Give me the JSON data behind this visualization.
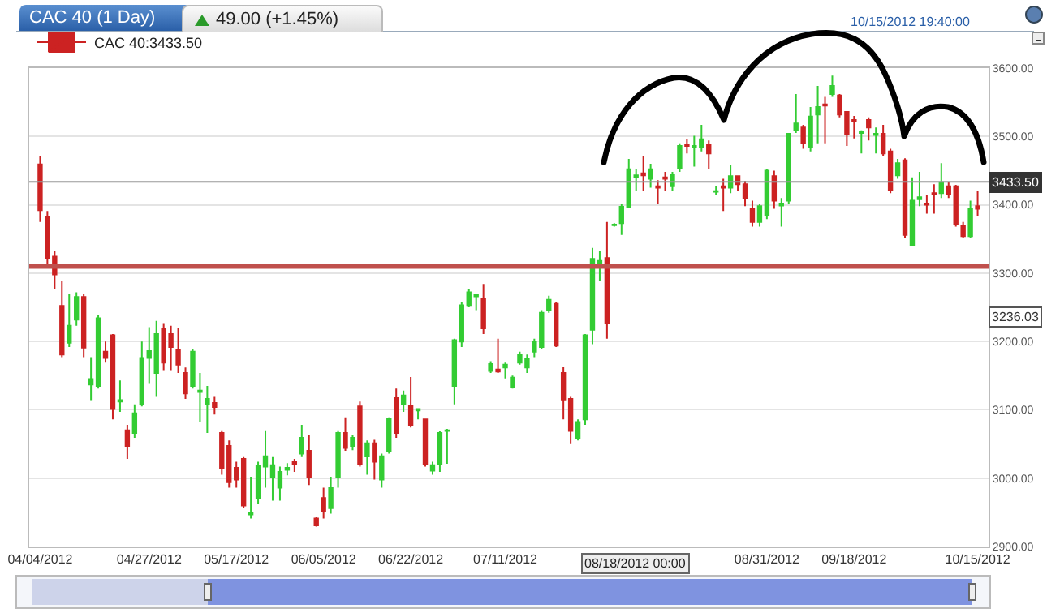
{
  "chart_data": {
    "type": "candlestick",
    "title": "CAC 40 (1 Day)",
    "subtitle": "49.00 (+1.45%)",
    "categories": [
      "04/04/2012",
      null,
      null,
      null,
      null,
      null,
      null,
      null,
      null,
      null,
      null,
      null,
      null,
      null,
      null,
      "04/27/2012",
      null,
      null,
      null,
      null,
      null,
      null,
      null,
      null,
      null,
      null,
      null,
      "05/17/2012",
      null,
      null,
      null,
      null,
      null,
      null,
      null,
      null,
      null,
      null,
      null,
      "06/05/2012",
      null,
      null,
      null,
      null,
      null,
      null,
      null,
      null,
      null,
      null,
      null,
      "06/22/2012",
      null,
      null,
      null,
      null,
      null,
      null,
      null,
      null,
      null,
      null,
      null,
      null,
      "07/11/2012",
      null,
      null,
      null,
      null,
      null,
      null,
      null,
      null,
      null,
      null,
      null,
      null,
      null,
      null,
      null,
      null,
      null,
      null,
      null,
      null,
      null,
      null,
      null,
      null,
      null,
      null,
      null,
      null,
      null,
      null,
      null,
      null,
      null,
      null,
      null,
      "08/31/2012",
      null,
      null,
      null,
      null,
      null,
      null,
      null,
      null,
      null,
      null,
      null,
      "09/18/2012",
      null,
      null,
      null,
      null,
      null,
      null,
      null,
      null,
      null,
      null,
      null,
      null,
      null,
      null,
      null,
      null,
      "10/15/2012"
    ],
    "series": [
      {
        "name": "CAC 40:3433.50",
        "colors": [
          "#cc2222",
          "#cc2222",
          "#cc2222",
          "#cc2222",
          "#33cc33",
          "#33cc33",
          "#cc2222",
          "#33cc33",
          "#33cc33",
          "#cc2222",
          "#cc2222",
          "#33cc33",
          "#cc2222",
          "#33cc33",
          "#33cc33",
          "#33cc33",
          "#33cc33",
          "#cc2222",
          "#cc2222",
          "#cc2222",
          "#cc2222",
          "#33cc33",
          "#33cc33",
          "#33cc33",
          "#cc2222",
          "#cc2222",
          "#cc2222",
          "#cc2222",
          "#cc2222",
          "#33cc33",
          "#33cc33",
          "#33cc33",
          "#33cc33",
          "#33cc33",
          "#33cc33",
          "#cc2222",
          "#33cc33",
          "#cc2222",
          "#cc2222",
          "#cc2222",
          "#33cc33",
          "#33cc33",
          "#cc2222",
          "#33cc33",
          "#cc2222",
          "#33cc33",
          "#cc2222",
          "#33cc33",
          "#33cc33",
          "#cc2222",
          "#33cc33",
          "#cc2222",
          "#33cc33",
          "#cc2222",
          "#33cc33",
          "#33cc33",
          "#33cc33",
          "#33cc33",
          "#33cc33",
          "#33cc33",
          "#33cc33",
          "#cc2222",
          "#33cc33",
          "#cc2222",
          "#33cc33",
          "#33cc33",
          "#33cc33",
          "#33cc33",
          "#33cc33",
          "#33cc33",
          "#33cc33",
          "#cc2222",
          "#cc2222",
          "#cc2222",
          "#33cc33",
          "#33cc33",
          "#33cc33",
          "#33cc33",
          "#cc2222",
          "#33cc33",
          "#33cc33",
          "#33cc33",
          "#33cc33",
          "#cc2222",
          "#33cc33",
          "#cc2222",
          "#cc2222",
          "#33cc33",
          "#33cc33",
          "#cc2222",
          "#33cc33",
          "#33cc33",
          "#cc2222",
          "#33cc33",
          "#cc2222",
          "#33cc33",
          "#cc2222",
          "#cc2222",
          "#cc2222",
          "#33cc33",
          "#33cc33",
          "#cc2222",
          "#33cc33",
          "#33cc33",
          "#33cc33",
          "#cc2222",
          "#33cc33",
          "#33cc33",
          "#cc2222",
          "#33cc33",
          "#cc2222",
          "#cc2222",
          "#cc2222",
          "#33cc33",
          "#cc2222",
          "#33cc33",
          "#cc2222",
          "#cc2222",
          "#33cc33",
          "#cc2222",
          "#33cc33",
          "#33cc33",
          "#cc2222",
          "#cc2222",
          "#33cc33",
          "#cc2222",
          "#cc2222",
          "#cc2222",
          "#33cc33",
          "#cc2222"
        ],
        "ohlc": [
          [
            3459,
            3471,
            3375,
            3392
          ],
          [
            3383,
            3391,
            3311,
            3322
          ],
          [
            3324,
            3333,
            3276,
            3298
          ],
          [
            3252,
            3288,
            3177,
            3181
          ],
          [
            3198,
            3269,
            3192,
            3223
          ],
          [
            3232,
            3272,
            3223,
            3265
          ],
          [
            3265,
            3269,
            3177,
            3191
          ],
          [
            3137,
            3177,
            3114,
            3145
          ],
          [
            3135,
            3238,
            3131,
            3234
          ],
          [
            3185,
            3200,
            3169,
            3176
          ],
          [
            3209,
            3211,
            3086,
            3101
          ],
          [
            3112,
            3143,
            3097,
            3114
          ],
          [
            3070,
            3078,
            3028,
            3047
          ],
          [
            3066,
            3108,
            3059,
            3095
          ],
          [
            3108,
            3200,
            3105,
            3176
          ],
          [
            3176,
            3221,
            3139,
            3186
          ],
          [
            3154,
            3230,
            3120,
            3211
          ],
          [
            3219,
            3227,
            3158,
            3169
          ],
          [
            3211,
            3223,
            3158,
            3192
          ],
          [
            3188,
            3219,
            3154,
            3166
          ],
          [
            3154,
            3162,
            3116,
            3124
          ],
          [
            3135,
            3189,
            3131,
            3185
          ],
          [
            3126,
            3154,
            3082,
            3128
          ],
          [
            3108,
            3135,
            3066,
            3116
          ],
          [
            3110,
            3120,
            3093,
            3104
          ],
          [
            3066,
            3070,
            3005,
            3015
          ],
          [
            3047,
            3055,
            2986,
            2994
          ],
          [
            3015,
            3024,
            2986,
            2998
          ],
          [
            3028,
            3032,
            2956,
            2960
          ],
          [
            2947,
            3002,
            2941,
            2949
          ],
          [
            2970,
            3024,
            2963,
            3018
          ],
          [
            3017,
            3070,
            2986,
            3032
          ],
          [
            3002,
            3032,
            2967,
            3019
          ],
          [
            2986,
            3017,
            2967,
            3009
          ],
          [
            3012,
            3022,
            3004,
            3015
          ],
          [
            3024,
            3028,
            3009,
            3021
          ],
          [
            3036,
            3078,
            3032,
            3059
          ],
          [
            3040,
            3063,
            2990,
            3002
          ],
          [
            2941,
            2944,
            2929,
            2931
          ],
          [
            2971,
            2986,
            2941,
            2952
          ],
          [
            2956,
            3002,
            2948,
            2986
          ],
          [
            3002,
            3070,
            2986,
            3066
          ],
          [
            3066,
            3089,
            3040,
            3044
          ],
          [
            3047,
            3063,
            3041,
            3059
          ],
          [
            3105,
            3112,
            3017,
            3021
          ],
          [
            3032,
            3055,
            3005,
            3051
          ],
          [
            3051,
            3056,
            2998,
            3024
          ],
          [
            2998,
            3036,
            2986,
            3032
          ],
          [
            3040,
            3089,
            3036,
            3087
          ],
          [
            3117,
            3131,
            3059,
            3066
          ],
          [
            3108,
            3128,
            3097,
            3121
          ],
          [
            3106,
            3148,
            3074,
            3078
          ],
          [
            3099,
            3102,
            3086,
            3101
          ],
          [
            3086,
            3087,
            3017,
            3021
          ],
          [
            3011,
            3024,
            3005,
            3019
          ],
          [
            3021,
            3069,
            3009,
            3066
          ],
          [
            3069,
            3072,
            3021,
            3070
          ],
          [
            3135,
            3204,
            3108,
            3202
          ],
          [
            3200,
            3257,
            3192,
            3253
          ],
          [
            3252,
            3276,
            3250,
            3272
          ],
          [
            3266,
            3270,
            3246,
            3268
          ],
          [
            3262,
            3284,
            3211,
            3219
          ],
          [
            3157,
            3171,
            3154,
            3167
          ],
          [
            3159,
            3204,
            3154,
            3156
          ],
          [
            3162,
            3169,
            3146,
            3166
          ],
          [
            3133,
            3150,
            3131,
            3147
          ],
          [
            3169,
            3185,
            3166,
            3181
          ],
          [
            3162,
            3181,
            3154,
            3175
          ],
          [
            3185,
            3204,
            3177,
            3200
          ],
          [
            3192,
            3246,
            3189,
            3242
          ],
          [
            3246,
            3267,
            3242,
            3261
          ],
          [
            3255,
            3257,
            3192,
            3194
          ],
          [
            3154,
            3163,
            3086,
            3115
          ],
          [
            3116,
            3120,
            3051,
            3069
          ],
          [
            3059,
            3086,
            3055,
            3082
          ],
          [
            3086,
            3211,
            3078,
            3209
          ],
          [
            3217,
            3337,
            3196,
            3321
          ],
          [
            3314,
            3333,
            3288,
            3318
          ],
          [
            3322,
            3375,
            3204,
            3227
          ],
          [
            3370,
            3373,
            3368,
            3371
          ],
          [
            3373,
            3402,
            3356,
            3397
          ],
          [
            3397,
            3467,
            3395,
            3452
          ],
          [
            3441,
            3452,
            3421,
            3443
          ],
          [
            3446,
            3471,
            3421,
            3443
          ],
          [
            3438,
            3460,
            3425,
            3452
          ],
          [
            3427,
            3436,
            3402,
            3425
          ],
          [
            3440,
            3448,
            3421,
            3438
          ],
          [
            3427,
            3448,
            3421,
            3444
          ],
          [
            3453,
            3490,
            3448,
            3486
          ],
          [
            3488,
            3496,
            3475,
            3486
          ],
          [
            3484,
            3501,
            3456,
            3486
          ],
          [
            3484,
            3517,
            3478,
            3496
          ],
          [
            3488,
            3494,
            3453,
            3475
          ],
          [
            3419,
            3427,
            3415,
            3420
          ],
          [
            3427,
            3438,
            3391,
            3425
          ],
          [
            3425,
            3458,
            3417,
            3442
          ],
          [
            3442,
            3443,
            3421,
            3430
          ],
          [
            3430,
            3435,
            3398,
            3410
          ],
          [
            3394,
            3406,
            3368,
            3375
          ],
          [
            3375,
            3402,
            3368,
            3398
          ],
          [
            3385,
            3453,
            3379,
            3450
          ],
          [
            3442,
            3450,
            3394,
            3406
          ],
          [
            3399,
            3410,
            3368,
            3402
          ],
          [
            3406,
            3505,
            3402,
            3504
          ],
          [
            3509,
            3562,
            3505,
            3519
          ],
          [
            3513,
            3517,
            3482,
            3490
          ],
          [
            3484,
            3543,
            3478,
            3529
          ],
          [
            3532,
            3574,
            3490,
            3543
          ],
          [
            3547,
            3558,
            3490,
            3545
          ],
          [
            3562,
            3589,
            3558,
            3574
          ],
          [
            3560,
            3562,
            3528,
            3532
          ],
          [
            3536,
            3537,
            3486,
            3504
          ],
          [
            3524,
            3530,
            3497,
            3522
          ],
          [
            3505,
            3509,
            3475,
            3507
          ],
          [
            3524,
            3528,
            3494,
            3513
          ],
          [
            3502,
            3513,
            3475,
            3504
          ],
          [
            3504,
            3517,
            3471,
            3475
          ],
          [
            3478,
            3482,
            3417,
            3421
          ],
          [
            3443,
            3467,
            3438,
            3461
          ],
          [
            3465,
            3468,
            3352,
            3356
          ],
          [
            3341,
            3440,
            3339,
            3406
          ],
          [
            3408,
            3448,
            3398,
            3411
          ],
          [
            3402,
            3414,
            3387,
            3400
          ],
          [
            3417,
            3430,
            3387,
            3415
          ],
          [
            3417,
            3461,
            3410,
            3433
          ],
          [
            3427,
            3433,
            3410,
            3415
          ],
          [
            3427,
            3429,
            3368,
            3372
          ],
          [
            3369,
            3375,
            3351,
            3354
          ],
          [
            3354,
            3406,
            3351,
            3394
          ],
          [
            3398,
            3421,
            3383,
            3394
          ]
        ]
      }
    ],
    "ylim": [
      2900,
      3600
    ],
    "yticks": [
      {
        "value": 2900,
        "label": "2900.00"
      },
      {
        "value": 3000,
        "label": "3000.00"
      },
      {
        "value": 3100,
        "label": "3100.00"
      },
      {
        "value": 3200,
        "label": "3200.00"
      },
      {
        "value": 3300,
        "label": "3300.00"
      },
      {
        "value": 3400,
        "label": "3400.00"
      },
      {
        "value": 3500,
        "label": "3500.00"
      },
      {
        "value": 3600,
        "label": "3600.00"
      }
    ],
    "ref_lines": [
      {
        "axis": "y",
        "value": 3433.5,
        "label": "3433.50",
        "color": "#999999"
      },
      {
        "axis": "y",
        "value": 3310,
        "color": "#c0504d"
      }
    ],
    "annotations": [
      "10/15/2012 19:40:00",
      "08/18/2012 00:00",
      {
        "text": "3236.03",
        "y": 3236.03
      }
    ],
    "grid": "y",
    "legend": "top left"
  }
}
